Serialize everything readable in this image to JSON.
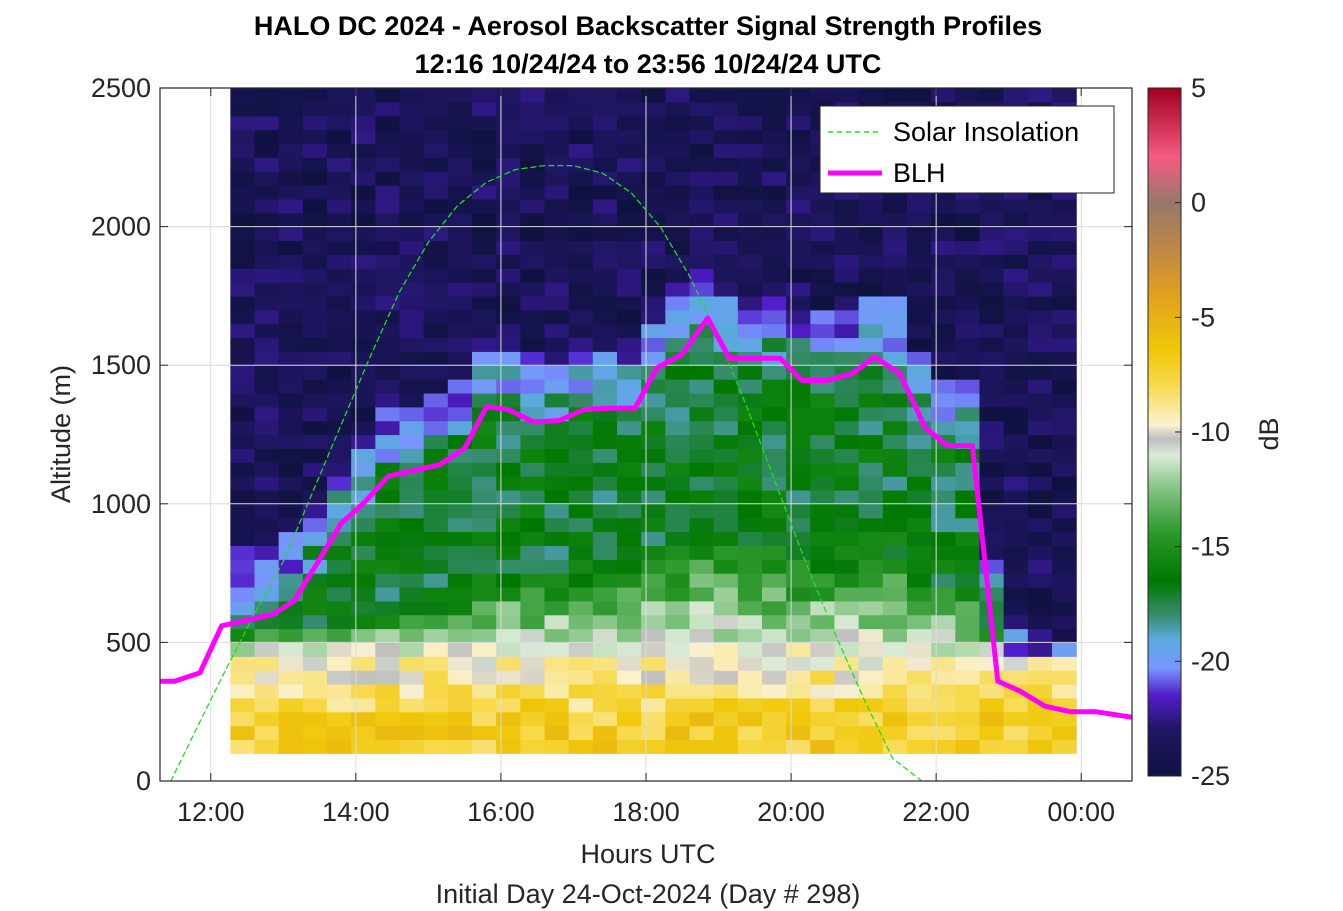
{
  "chart_data": {
    "type": "heatmap",
    "title": "HALO DC 2024 - Aerosol Backscatter Signal Strength Profiles",
    "subtitle": "12:16 10/24/24 to 23:56 10/24/24  UTC",
    "xlabel": "Hours UTC",
    "xlabel2": "Initial Day 24-Oct-2024 (Day # 298)",
    "ylabel": "Altitude (m)",
    "colorbar_label": "dB",
    "xlim": [
      11.3,
      24.7
    ],
    "ylim": [
      0,
      2500
    ],
    "clim": [
      -25,
      5
    ],
    "grid": true,
    "x_ticks": [
      {
        "value": 12,
        "label": "12:00"
      },
      {
        "value": 14,
        "label": "14:00"
      },
      {
        "value": 16,
        "label": "16:00"
      },
      {
        "value": 18,
        "label": "18:00"
      },
      {
        "value": 20,
        "label": "20:00"
      },
      {
        "value": 22,
        "label": "22:00"
      },
      {
        "value": 24,
        "label": "00:00"
      }
    ],
    "y_ticks": [
      {
        "value": 0,
        "label": "0"
      },
      {
        "value": 500,
        "label": "500"
      },
      {
        "value": 1000,
        "label": "1000"
      },
      {
        "value": 1500,
        "label": "1500"
      },
      {
        "value": 2000,
        "label": "2000"
      },
      {
        "value": 2500,
        "label": "2500"
      }
    ],
    "colorbar_ticks": [
      {
        "value": 5,
        "label": "5"
      },
      {
        "value": 0,
        "label": "0"
      },
      {
        "value": -5,
        "label": "-5"
      },
      {
        "value": -10,
        "label": "-10"
      },
      {
        "value": -15,
        "label": "-15"
      },
      {
        "value": -20,
        "label": "-20"
      },
      {
        "value": -25,
        "label": "-25"
      }
    ],
    "heatmap": {
      "x_start": 12.27,
      "x_end": 23.93,
      "y_start": 100,
      "y_end": 2500,
      "time_bins": 35,
      "altitude_bins": 48,
      "value_model": "dB values estimated from the colour field: aerosol layer below the boundary layer height, clear air above it"
    },
    "series": [
      {
        "name": "Solar Insolation",
        "style": "dashed",
        "color": "#22dd22",
        "x": [
          11.45,
          11.8,
          12.2,
          12.6,
          13.0,
          13.4,
          13.8,
          14.2,
          14.6,
          15.0,
          15.4,
          15.8,
          16.2,
          16.6,
          17.0,
          17.4,
          17.8,
          18.2,
          18.6,
          19.0,
          19.4,
          19.8,
          20.2,
          20.6,
          21.0,
          21.4,
          21.8,
          22.2,
          22.6,
          23.0,
          23.4,
          23.8,
          24.2,
          24.7
        ],
        "y": [
          0,
          187,
          398,
          601,
          792,
          1039,
          1287,
          1532,
          1764,
          1944,
          2075,
          2160,
          2206,
          2220,
          2220,
          2193,
          2121,
          1998,
          1822,
          1600,
          1343,
          1066,
          790,
          535,
          298,
          82,
          0,
          0,
          0,
          0,
          0,
          0,
          0,
          0
        ]
      },
      {
        "name": "BLH",
        "style": "solid",
        "color": "#ff00ff",
        "x": [
          11.3,
          11.5,
          11.85,
          12.15,
          12.5,
          12.85,
          13.15,
          13.5,
          13.8,
          14.1,
          14.45,
          14.8,
          15.15,
          15.5,
          15.8,
          16.1,
          16.45,
          16.8,
          17.15,
          17.5,
          17.85,
          18.15,
          18.5,
          18.85,
          19.15,
          19.5,
          19.85,
          20.15,
          20.5,
          20.85,
          21.15,
          21.5,
          21.85,
          22.15,
          22.5,
          22.85,
          23.15,
          23.5,
          23.85,
          24.2,
          24.7
        ],
        "y": [
          360,
          360,
          390,
          560,
          580,
          600,
          650,
          800,
          930,
          1000,
          1100,
          1120,
          1140,
          1200,
          1350,
          1340,
          1295,
          1300,
          1340,
          1345,
          1345,
          1490,
          1540,
          1670,
          1525,
          1525,
          1525,
          1445,
          1445,
          1470,
          1530,
          1470,
          1275,
          1210,
          1210,
          360,
          325,
          270,
          250,
          250,
          230
        ]
      }
    ],
    "legend": {
      "placement": "top-right",
      "entries": [
        "Solar Insolation",
        "BLH"
      ]
    }
  }
}
